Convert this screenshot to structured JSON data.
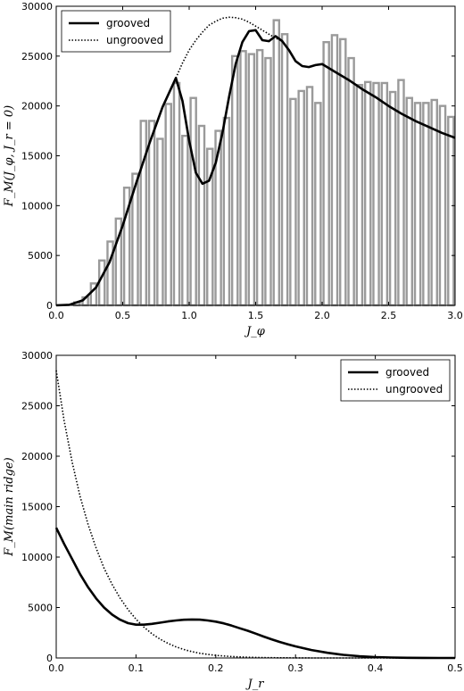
{
  "chart_data": [
    {
      "type": "bar",
      "xlabel": "J_φ",
      "ylabel": "F_M(J_φ, J_r = 0)",
      "xlim": [
        0.0,
        3.0
      ],
      "ylim": [
        0,
        30000
      ],
      "xticks": [
        "0.0",
        "0.5",
        "1.0",
        "1.5",
        "2.0",
        "2.5",
        "3.0"
      ],
      "yticks": [
        "0",
        "5000",
        "10000",
        "15000",
        "20000",
        "25000",
        "30000"
      ],
      "legend": {
        "placement": "top-left",
        "entries": [
          "grooved",
          "ungrooved"
        ]
      },
      "histogram": {
        "bin_width": 0.0625,
        "bin_starts": [
          0.0,
          0.0625,
          0.125,
          0.1875,
          0.25,
          0.3125,
          0.375,
          0.4375,
          0.5,
          0.5625,
          0.625,
          0.6875,
          0.75,
          0.8125,
          0.875,
          0.9375,
          1.0,
          1.0625,
          1.125,
          1.1875,
          1.25,
          1.3125,
          1.375,
          1.4375,
          1.5,
          1.5625,
          1.625,
          1.6875,
          1.75,
          1.8125,
          1.875,
          1.9375,
          2.0,
          2.0625,
          2.125,
          2.1875,
          2.25,
          2.3125,
          2.375,
          2.4375,
          2.5,
          2.5625,
          2.625,
          2.6875,
          2.75,
          2.8125,
          2.875,
          2.9375
        ],
        "values": [
          0,
          0,
          300,
          800,
          2200,
          4500,
          6400,
          8700,
          11800,
          13200,
          18500,
          18500,
          16700,
          20200,
          22300,
          17000,
          20800,
          18000,
          15700,
          17500,
          18800,
          25000,
          25500,
          25200,
          25600,
          24800,
          28600,
          27200,
          20700,
          21500,
          21900,
          20300,
          26400,
          27100,
          26700,
          24800,
          22100,
          22400,
          22300,
          22300,
          21400,
          22600,
          20800,
          20300,
          20300,
          20600,
          20000,
          18900
        ],
        "color": "#9a9a9a"
      },
      "series": [
        {
          "name": "grooved",
          "style": "solid",
          "color": "#000000",
          "x": [
            0.0,
            0.1,
            0.2,
            0.3,
            0.4,
            0.5,
            0.6,
            0.7,
            0.8,
            0.9,
            0.95,
            1.0,
            1.05,
            1.1,
            1.15,
            1.2,
            1.25,
            1.3,
            1.35,
            1.4,
            1.45,
            1.5,
            1.55,
            1.6,
            1.65,
            1.7,
            1.75,
            1.8,
            1.85,
            1.9,
            1.95,
            2.0,
            2.1,
            2.2,
            2.3,
            2.4,
            2.5,
            2.6,
            2.7,
            2.8,
            2.9,
            3.0
          ],
          "y": [
            0,
            50,
            500,
            1800,
            4300,
            8000,
            12200,
            16200,
            19900,
            22800,
            20500,
            16500,
            13300,
            12200,
            12500,
            14300,
            17300,
            20900,
            24200,
            26400,
            27500,
            27600,
            26600,
            26500,
            27000,
            26500,
            25600,
            24500,
            24000,
            23900,
            24100,
            24200,
            23400,
            22600,
            21700,
            20900,
            20000,
            19200,
            18500,
            17900,
            17300,
            16800
          ]
        },
        {
          "name": "ungrooved",
          "style": "dotted",
          "color": "#000000",
          "x": [
            0.9,
            0.95,
            1.0,
            1.05,
            1.1,
            1.15,
            1.2,
            1.25,
            1.3,
            1.35,
            1.4,
            1.45,
            1.5,
            1.55,
            1.6,
            1.65,
            1.7
          ],
          "y": [
            22800,
            24300,
            25600,
            26600,
            27400,
            28100,
            28500,
            28800,
            28900,
            28850,
            28700,
            28400,
            28000,
            27600,
            27200,
            26800,
            26500
          ]
        }
      ]
    },
    {
      "type": "line",
      "xlabel": "J_r",
      "ylabel": "F_M(main ridge)",
      "xlim": [
        0.0,
        0.5
      ],
      "ylim": [
        0,
        30000
      ],
      "xticks": [
        "0.0",
        "0.1",
        "0.2",
        "0.3",
        "0.4",
        "0.5"
      ],
      "yticks": [
        "0",
        "5000",
        "10000",
        "15000",
        "20000",
        "25000",
        "30000"
      ],
      "legend": {
        "placement": "top-right",
        "entries": [
          "grooved",
          "ungrooved"
        ]
      },
      "series": [
        {
          "name": "grooved",
          "style": "solid",
          "color": "#000000",
          "x": [
            0.0,
            0.01,
            0.02,
            0.03,
            0.04,
            0.05,
            0.06,
            0.07,
            0.08,
            0.09,
            0.1,
            0.11,
            0.12,
            0.13,
            0.14,
            0.15,
            0.16,
            0.17,
            0.18,
            0.19,
            0.2,
            0.21,
            0.22,
            0.23,
            0.24,
            0.25,
            0.26,
            0.27,
            0.28,
            0.29,
            0.3,
            0.32,
            0.34,
            0.36,
            0.38,
            0.4,
            0.42,
            0.44,
            0.46,
            0.48,
            0.5
          ],
          "y": [
            12900,
            11300,
            9800,
            8300,
            7000,
            5900,
            5000,
            4300,
            3800,
            3450,
            3300,
            3300,
            3380,
            3500,
            3620,
            3720,
            3790,
            3810,
            3800,
            3720,
            3600,
            3430,
            3200,
            2950,
            2700,
            2420,
            2120,
            1850,
            1590,
            1360,
            1150,
            790,
            510,
            310,
            175,
            90,
            42,
            18,
            8,
            3,
            0
          ]
        },
        {
          "name": "ungrooved",
          "style": "dotted",
          "color": "#000000",
          "x": [
            0.0,
            0.01,
            0.02,
            0.03,
            0.04,
            0.05,
            0.06,
            0.07,
            0.08,
            0.09,
            0.1,
            0.11,
            0.12,
            0.13,
            0.14,
            0.15,
            0.16,
            0.17,
            0.18,
            0.19,
            0.2,
            0.22,
            0.24,
            0.26,
            0.28,
            0.3,
            0.32,
            0.34,
            0.36,
            0.38,
            0.4,
            0.45,
            0.5
          ],
          "y": [
            28500,
            23500,
            19400,
            16000,
            13200,
            10900,
            8900,
            7300,
            5950,
            4800,
            3850,
            3050,
            2400,
            1880,
            1450,
            1110,
            840,
            630,
            470,
            350,
            260,
            140,
            72,
            36,
            18,
            9,
            4,
            2,
            1,
            0,
            0,
            0,
            0
          ]
        }
      ]
    }
  ]
}
